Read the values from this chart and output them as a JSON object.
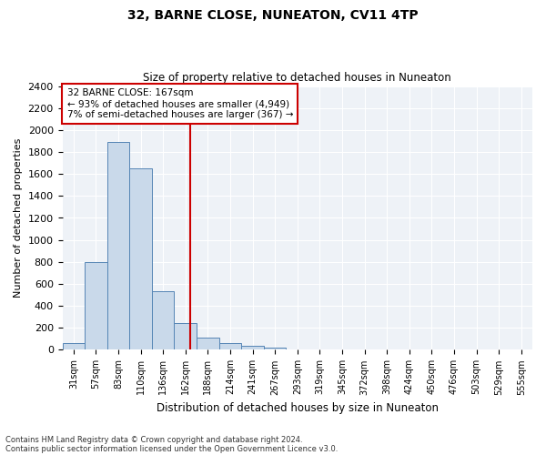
{
  "title": "32, BARNE CLOSE, NUNEATON, CV11 4TP",
  "subtitle": "Size of property relative to detached houses in Nuneaton",
  "xlabel": "Distribution of detached houses by size in Nuneaton",
  "ylabel": "Number of detached properties",
  "categories": [
    "31sqm",
    "57sqm",
    "83sqm",
    "110sqm",
    "136sqm",
    "162sqm",
    "188sqm",
    "214sqm",
    "241sqm",
    "267sqm",
    "293sqm",
    "319sqm",
    "345sqm",
    "372sqm",
    "398sqm",
    "424sqm",
    "450sqm",
    "476sqm",
    "503sqm",
    "529sqm",
    "555sqm"
  ],
  "values": [
    60,
    800,
    1890,
    1650,
    530,
    240,
    110,
    60,
    35,
    20,
    0,
    0,
    0,
    0,
    0,
    0,
    0,
    0,
    0,
    0,
    0
  ],
  "bar_color": "#c9d9ea",
  "bar_edge_color": "#5585b5",
  "vline_color": "#cc0000",
  "annotation_line1": "32 BARNE CLOSE: 167sqm",
  "annotation_line2": "← 93% of detached houses are smaller (4,949)",
  "annotation_line3": "7% of semi-detached houses are larger (367) →",
  "annotation_box_color": "#cc0000",
  "ylim": [
    0,
    2400
  ],
  "yticks": [
    0,
    200,
    400,
    600,
    800,
    1000,
    1200,
    1400,
    1600,
    1800,
    2000,
    2200,
    2400
  ],
  "footer1": "Contains HM Land Registry data © Crown copyright and database right 2024.",
  "footer2": "Contains public sector information licensed under the Open Government Licence v3.0.",
  "plot_bg_color": "#eef2f7"
}
